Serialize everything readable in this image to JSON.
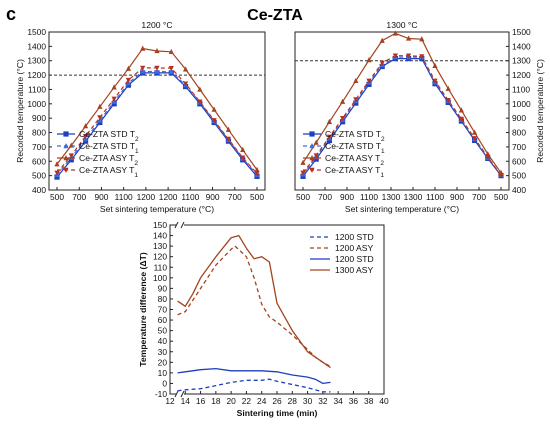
{
  "figure": {
    "panel_label": "c",
    "main_title": "Ce-ZTA"
  },
  "chart_data": [
    {
      "id": "left",
      "type": "line",
      "title": "1200 °C",
      "xlabel": "Set sintering temperature (°C)",
      "ylabel": "Recorded temperature (°C)",
      "x_tick_labels": [
        "500",
        "700",
        "900",
        "1100",
        "1200",
        "1200",
        "1100",
        "900",
        "700",
        "500"
      ],
      "ylim": [
        400,
        1500
      ],
      "y_ticks": [
        400,
        500,
        600,
        700,
        800,
        900,
        1000,
        1100,
        1200,
        1300,
        1400,
        1500
      ],
      "reference_line_y": 1200,
      "series": [
        {
          "name": "Ce-ZTA STD T2",
          "color": "#1f3fbf",
          "style": "solid",
          "marker": "square",
          "values": [
            490,
            610,
            740,
            870,
            1000,
            1130,
            1215,
            1215,
            1215,
            1120,
            1000,
            870,
            740,
            610,
            495
          ]
        },
        {
          "name": "Ce-ZTA STD T1",
          "color": "#3a6de0",
          "style": "dashed",
          "marker": "triangle",
          "values": [
            505,
            625,
            755,
            885,
            1015,
            1145,
            1225,
            1225,
            1222,
            1130,
            1010,
            880,
            750,
            620,
            505
          ]
        },
        {
          "name": "Ce-ZTA ASY T2",
          "color": "#a3431f",
          "style": "solid",
          "marker": "triangle",
          "values": [
            580,
            710,
            845,
            980,
            1115,
            1245,
            1385,
            1368,
            1362,
            1240,
            1100,
            960,
            820,
            680,
            540
          ]
        },
        {
          "name": "Ce-ZTA ASY T1",
          "color": "#b8321f",
          "style": "dashed",
          "marker": "triangle-down",
          "values": [
            520,
            640,
            775,
            905,
            1035,
            1165,
            1250,
            1250,
            1248,
            1140,
            1015,
            885,
            755,
            625,
            515
          ]
        }
      ]
    },
    {
      "id": "right",
      "type": "line",
      "title": "1300 °C",
      "xlabel": "Set sintering temperature (°C)",
      "ylabel": "Recorded temperature (°C)",
      "x_tick_labels": [
        "500",
        "700",
        "900",
        "1100",
        "1300",
        "1300",
        "1100",
        "900",
        "700",
        "500"
      ],
      "ylim": [
        400,
        1500
      ],
      "y_ticks": [
        400,
        500,
        600,
        700,
        800,
        900,
        1000,
        1100,
        1200,
        1300,
        1400,
        1500
      ],
      "reference_line_y": 1300,
      "series": [
        {
          "name": "Ce-ZTA STD T2",
          "color": "#1f3fbf",
          "style": "solid",
          "marker": "square",
          "values": [
            495,
            615,
            745,
            875,
            1005,
            1135,
            1260,
            1315,
            1315,
            1315,
            1140,
            1010,
            880,
            745,
            620,
            500
          ]
        },
        {
          "name": "Ce-ZTA STD T1",
          "color": "#3a6de0",
          "style": "dashed",
          "marker": "triangle",
          "values": [
            510,
            630,
            760,
            890,
            1020,
            1150,
            1270,
            1325,
            1325,
            1325,
            1150,
            1020,
            890,
            755,
            625,
            505
          ]
        },
        {
          "name": "Ce-ZTA ASY T2",
          "color": "#a3431f",
          "style": "solid",
          "marker": "triangle",
          "values": [
            590,
            730,
            875,
            1015,
            1160,
            1305,
            1440,
            1490,
            1455,
            1450,
            1265,
            1105,
            955,
            800,
            650,
            520
          ]
        },
        {
          "name": "Ce-ZTA ASY T1",
          "color": "#b8321f",
          "style": "dashed",
          "marker": "triangle-down",
          "values": [
            520,
            640,
            770,
            900,
            1030,
            1160,
            1285,
            1335,
            1335,
            1330,
            1160,
            1025,
            895,
            760,
            630,
            500
          ]
        }
      ]
    },
    {
      "id": "bottom",
      "type": "line",
      "title": "",
      "xlabel": "Sintering time (min)",
      "ylabel": "Temperature difference (ΔT)",
      "xlim": [
        12,
        40
      ],
      "x_ticks": [
        12,
        14,
        16,
        18,
        20,
        22,
        24,
        26,
        28,
        30,
        32,
        34,
        36,
        38,
        40
      ],
      "ylim": [
        -10,
        150
      ],
      "y_ticks": [
        -10,
        0,
        10,
        20,
        30,
        40,
        50,
        60,
        70,
        80,
        90,
        100,
        110,
        120,
        130,
        140,
        150
      ],
      "x_break": true,
      "series": [
        {
          "name": "1200 STD",
          "color": "#1f3fbf",
          "style": "dashed",
          "x": [
            13,
            14,
            16,
            18,
            20,
            22,
            24,
            25,
            26,
            28,
            30,
            31,
            32,
            33
          ],
          "y": [
            -7,
            -6,
            -5,
            -2,
            1,
            3,
            3,
            4,
            2,
            -1,
            -4,
            -6,
            -8,
            -8
          ]
        },
        {
          "name": "1200 ASY",
          "color": "#a3431f",
          "style": "dashed",
          "x": [
            13,
            14,
            16,
            18,
            20,
            20.5,
            22,
            23,
            24,
            25,
            26,
            28,
            30,
            31,
            32,
            33
          ],
          "y": [
            65,
            68,
            90,
            112,
            127,
            130,
            120,
            100,
            75,
            63,
            58,
            46,
            32,
            25,
            20,
            16
          ]
        },
        {
          "name": "1200 STD",
          "color": "#1f3fbf",
          "style": "solid",
          "x": [
            13,
            14,
            16,
            18,
            20,
            22,
            24,
            26,
            28,
            30,
            31,
            32,
            33
          ],
          "y": [
            10,
            11,
            13,
            14,
            12,
            12,
            12,
            11,
            8,
            6,
            4,
            0,
            1
          ]
        },
        {
          "name": "1300 ASY",
          "color": "#a3431f",
          "style": "solid",
          "x": [
            13,
            14,
            15,
            16,
            18,
            20,
            21,
            22,
            23,
            24,
            25,
            26,
            28,
            30,
            32,
            33
          ],
          "y": [
            78,
            73,
            85,
            100,
            120,
            138,
            140,
            128,
            118,
            120,
            115,
            76,
            50,
            30,
            20,
            15
          ]
        }
      ]
    }
  ]
}
